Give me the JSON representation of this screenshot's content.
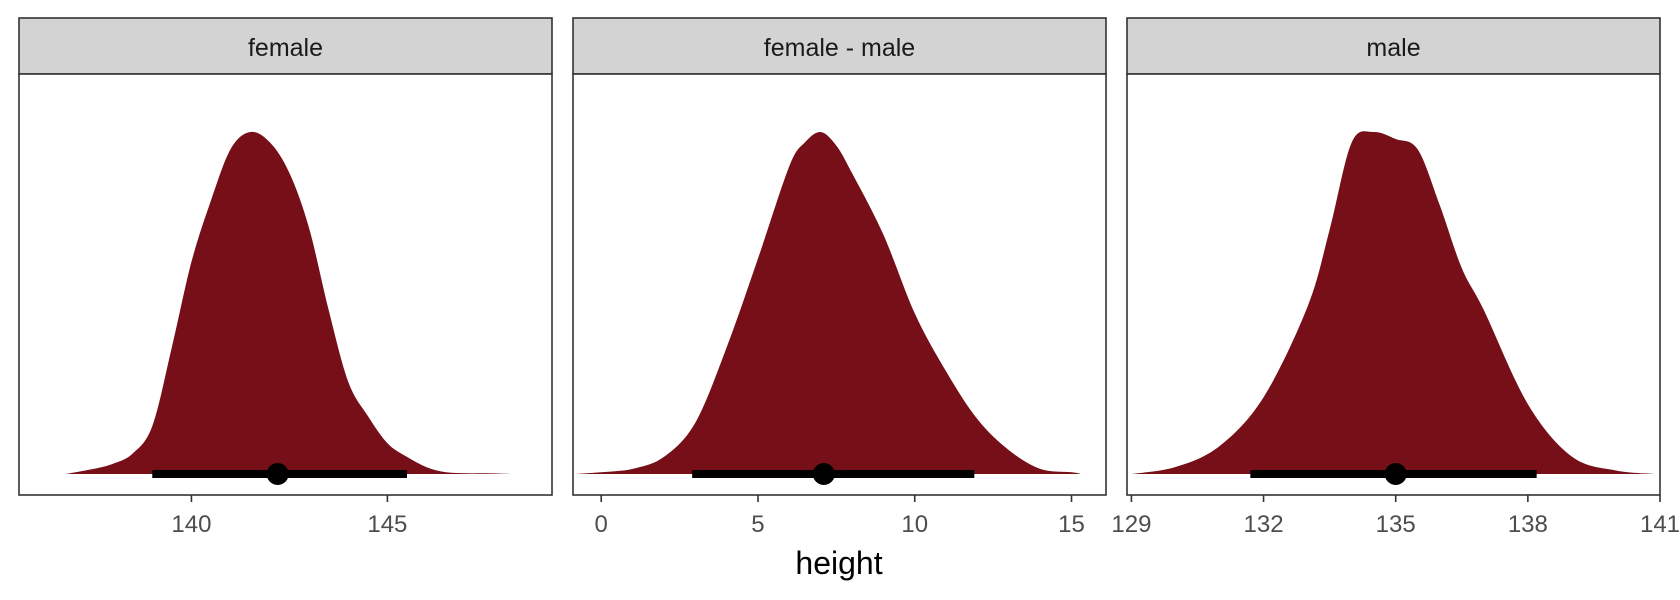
{
  "chart_data": {
    "type": "area",
    "xlabel": "height",
    "ylabel": "",
    "fill_color": "#760f18",
    "interval_color": "#000000",
    "grid": false,
    "panels": [
      {
        "title": "female",
        "xlim": [
          135.6,
          149.2
        ],
        "ticks": [
          140,
          145
        ],
        "tick_labels": [
          "140",
          "145"
        ],
        "density": {
          "x": [
            136.8,
            137.5,
            138.0,
            138.5,
            139.0,
            139.5,
            140.0,
            140.5,
            141.0,
            141.5,
            142.0,
            142.5,
            143.0,
            143.5,
            144.0,
            144.5,
            145.0,
            145.5,
            146.0,
            146.5,
            147.0,
            147.5,
            148.2
          ],
          "y": [
            0.0,
            0.015,
            0.03,
            0.06,
            0.14,
            0.37,
            0.62,
            0.8,
            0.95,
            1.0,
            0.97,
            0.88,
            0.72,
            0.48,
            0.27,
            0.17,
            0.09,
            0.05,
            0.02,
            0.005,
            0.002,
            0.002,
            0.0
          ]
        },
        "point": 142.2,
        "interval": [
          139.0,
          145.5
        ]
      },
      {
        "title": "female - male",
        "xlim": [
          -0.9,
          16.1
        ],
        "ticks": [
          0,
          5,
          10,
          15
        ],
        "tick_labels": [
          "0",
          "5",
          "10",
          "15"
        ],
        "density": {
          "x": [
            -0.8,
            0.0,
            1.0,
            2.0,
            3.0,
            4.0,
            5.0,
            6.0,
            6.5,
            7.0,
            7.5,
            8.0,
            9.0,
            10.0,
            11.0,
            12.0,
            13.0,
            14.0,
            15.0,
            15.3
          ],
          "y": [
            0.0,
            0.005,
            0.015,
            0.05,
            0.15,
            0.37,
            0.63,
            0.9,
            0.97,
            1.0,
            0.96,
            0.88,
            0.7,
            0.47,
            0.3,
            0.16,
            0.07,
            0.015,
            0.005,
            0.0
          ]
        },
        "point": 7.1,
        "interval": [
          2.9,
          11.9
        ]
      },
      {
        "title": "male",
        "xlim": [
          128.9,
          141.0
        ],
        "ticks": [
          129,
          132,
          135,
          138,
          141
        ],
        "tick_labels": [
          "129",
          "132",
          "135",
          "138",
          "141"
        ],
        "density": {
          "x": [
            129.0,
            130.0,
            131.0,
            132.0,
            133.0,
            133.5,
            134.0,
            134.5,
            135.0,
            135.5,
            136.0,
            136.5,
            137.0,
            138.0,
            139.0,
            140.0,
            140.9
          ],
          "y": [
            0.0,
            0.02,
            0.08,
            0.22,
            0.48,
            0.7,
            0.95,
            0.98,
            0.96,
            0.93,
            0.77,
            0.59,
            0.47,
            0.2,
            0.05,
            0.01,
            0.0
          ]
        },
        "point": 135.0,
        "interval": [
          131.7,
          138.2
        ]
      }
    ]
  }
}
